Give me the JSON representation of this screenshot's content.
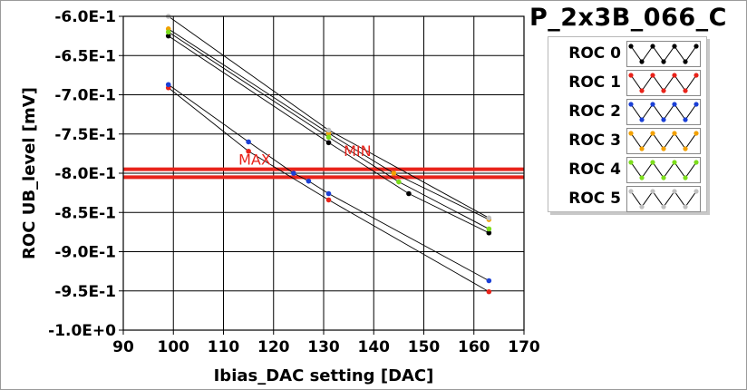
{
  "chart_data": {
    "type": "scatter",
    "title": "P_2x3B_066_C",
    "xlabel": "Ibias_DAC setting [DAC]",
    "ylabel": "ROC UB_level [mV]",
    "xlim": [
      90,
      170
    ],
    "ylim": [
      -1.0,
      -0.6
    ],
    "xticks": [
      90,
      100,
      110,
      120,
      130,
      140,
      150,
      160,
      170
    ],
    "yticks": [
      -0.6,
      -0.65,
      -0.7,
      -0.75,
      -0.8,
      -0.85,
      -0.9,
      -0.95,
      -1.0
    ],
    "xtick_labels": [
      "90",
      "100",
      "110",
      "120",
      "130",
      "140",
      "150",
      "160",
      "170"
    ],
    "ytick_labels": [
      "-6.0E-1",
      "-6.5E-1",
      "-7.0E-1",
      "-7.5E-1",
      "-8.0E-1",
      "-8.5E-1",
      "-9.0E-1",
      "-9.5E-1",
      "-1.0E+0"
    ],
    "grid": true,
    "legend_position": "top-right",
    "series": [
      {
        "name": "ROC 0",
        "color": "#000000",
        "x": [
          99,
          131,
          147,
          163
        ],
        "y": [
          -0.625,
          -0.761,
          -0.826,
          -0.876
        ]
      },
      {
        "name": "ROC 1",
        "color": "#e8231a",
        "x": [
          99,
          115,
          131,
          163
        ],
        "y": [
          -0.691,
          -0.772,
          -0.834,
          -0.951
        ]
      },
      {
        "name": "ROC 2",
        "color": "#1a3fd6",
        "x": [
          99,
          115,
          124,
          127,
          131,
          163
        ],
        "y": [
          -0.687,
          -0.76,
          -0.8,
          -0.81,
          -0.826,
          -0.937
        ]
      },
      {
        "name": "ROC 3",
        "color": "#f2a000",
        "x": [
          99,
          131,
          144,
          163
        ],
        "y": [
          -0.616,
          -0.749,
          -0.8,
          -0.859
        ]
      },
      {
        "name": "ROC 4",
        "color": "#7cdd1c",
        "x": [
          99,
          131,
          145,
          163
        ],
        "y": [
          -0.62,
          -0.754,
          -0.811,
          -0.871
        ]
      },
      {
        "name": "ROC 5",
        "color": "#c0c0c0",
        "x": [
          99,
          131,
          163
        ],
        "y": [
          -0.6,
          -0.745,
          -0.857
        ]
      }
    ],
    "hlines": [
      {
        "label": "MAX",
        "y": -0.795,
        "color": "#e8231a"
      },
      {
        "label": "MIN",
        "y": -0.805,
        "color": "#e8231a"
      }
    ],
    "annotations": [
      {
        "text": "MAX",
        "x": 113,
        "y": -0.789
      },
      {
        "text": "MIN",
        "x": 134,
        "y": -0.778
      }
    ]
  }
}
